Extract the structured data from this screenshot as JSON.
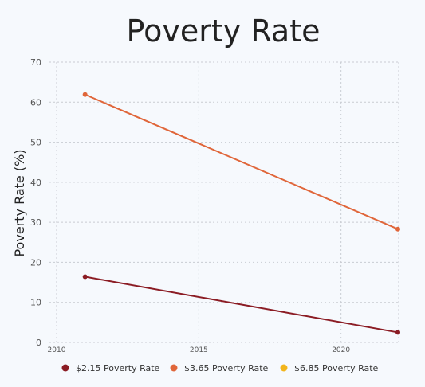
{
  "chart_data": {
    "type": "line",
    "title": "Poverty Rate",
    "xlabel": "",
    "ylabel": "Poverty Rate (%)",
    "xlim": [
      2010,
      2022
    ],
    "ylim": [
      0,
      70
    ],
    "xticks": [
      2010,
      2015,
      2020
    ],
    "yticks": [
      0,
      10,
      20,
      30,
      40,
      50,
      60,
      70
    ],
    "grid": true,
    "legend_position": "bottom",
    "series": [
      {
        "name": "$2.15 Poverty Rate",
        "color": "#8b1c24",
        "x": [
          2011,
          2022
        ],
        "values": [
          16.4,
          2.5
        ]
      },
      {
        "name": "$3.65 Poverty Rate",
        "color": "#e0663a",
        "x": [
          2011,
          2022
        ],
        "values": [
          61.9,
          28.3
        ]
      },
      {
        "name": "$6.85 Poverty Rate",
        "color": "#f2b51c",
        "x": [],
        "values": []
      }
    ]
  }
}
